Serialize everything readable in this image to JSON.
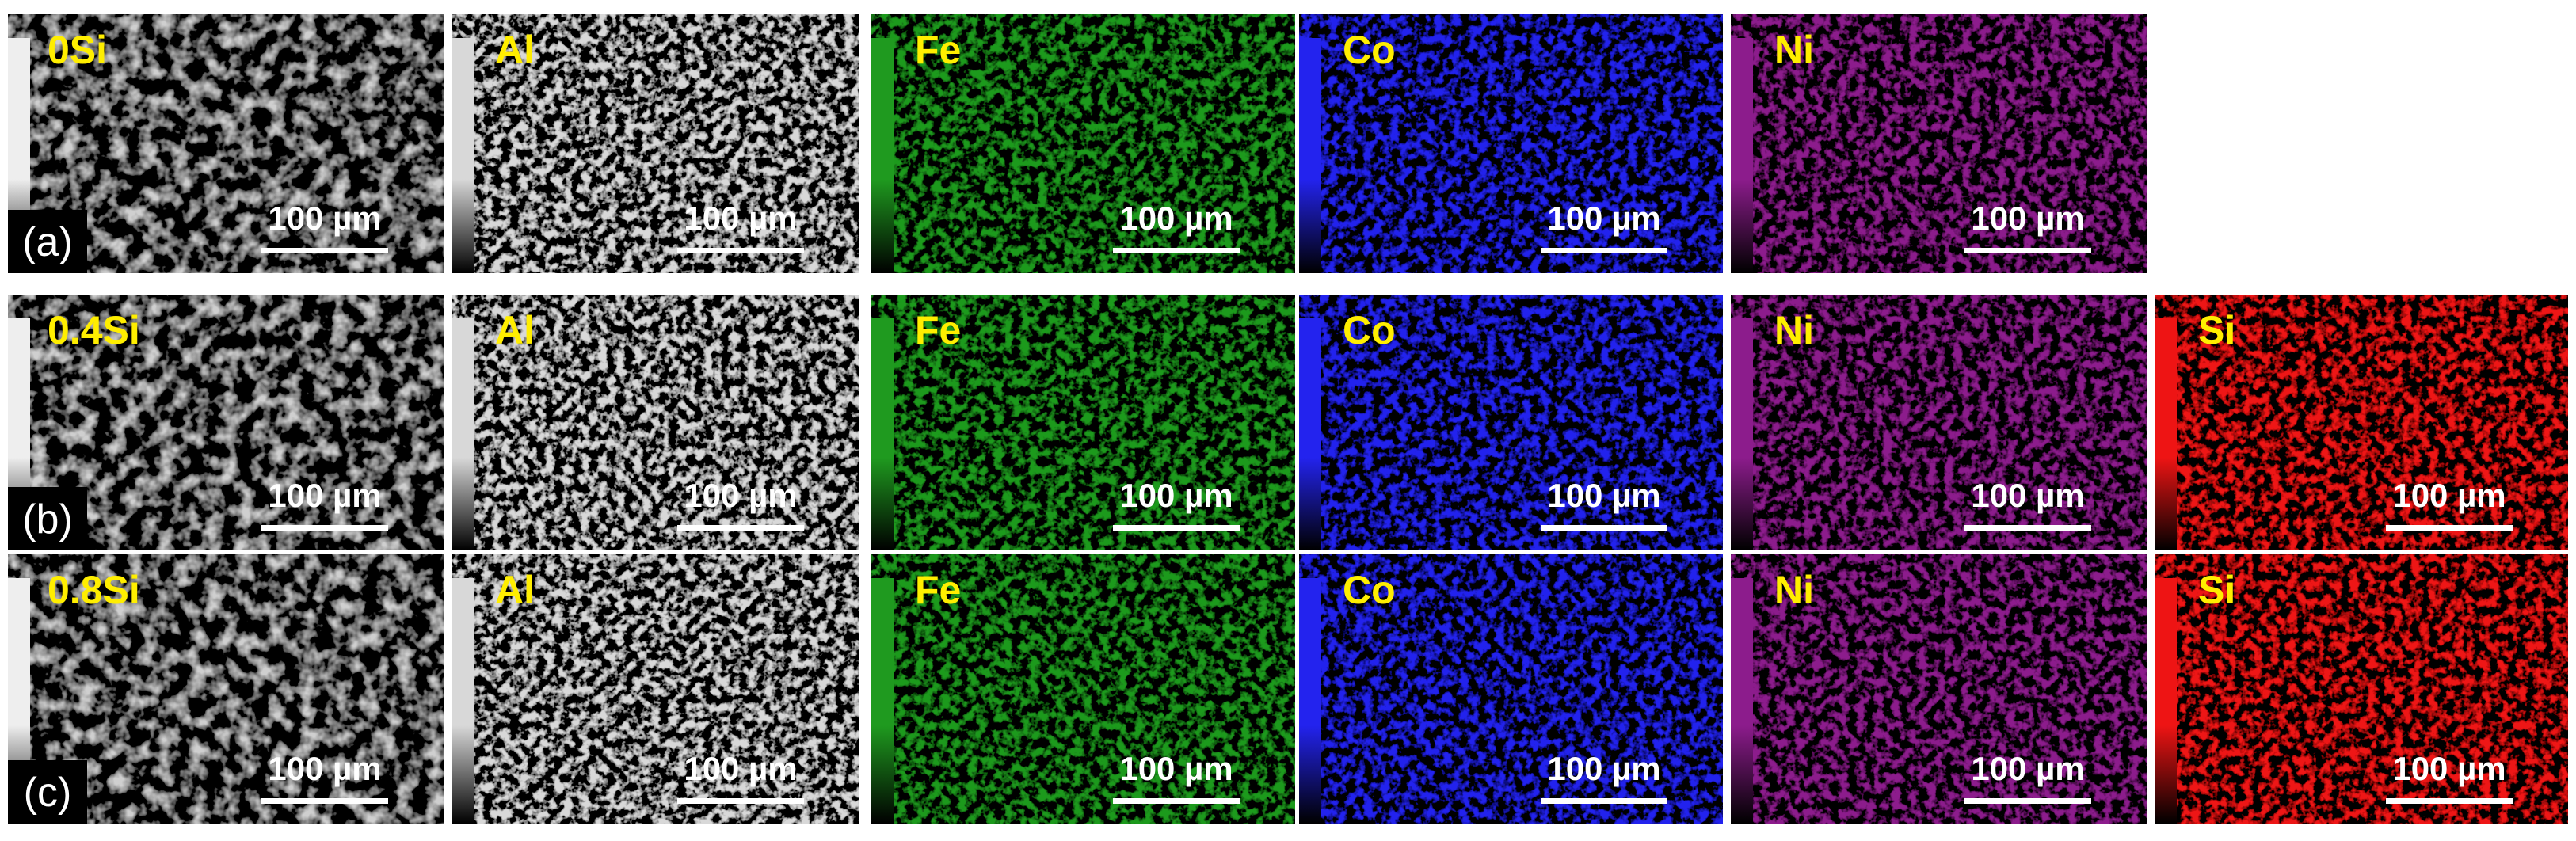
{
  "rows": [
    {
      "panel": "(a)",
      "sem": {
        "label": "0Si",
        "scale": "100 µm"
      },
      "maps": [
        {
          "element": "Al",
          "scale": "100 µm",
          "color": "#d8d8d8"
        },
        {
          "element": "Fe",
          "scale": "100 µm",
          "color": "#1f9a1f"
        },
        {
          "element": "Co",
          "scale": "100 µm",
          "color": "#2323ee"
        },
        {
          "element": "Ni",
          "scale": "100 µm",
          "color": "#8c1c8c"
        }
      ]
    },
    {
      "panel": "(b)",
      "sem": {
        "label": "0.4Si",
        "scale": "100 µm"
      },
      "maps": [
        {
          "element": "Al",
          "scale": "100 µm",
          "color": "#d8d8d8"
        },
        {
          "element": "Fe",
          "scale": "100 µm",
          "color": "#1f9a1f"
        },
        {
          "element": "Co",
          "scale": "100 µm",
          "color": "#2323ee"
        },
        {
          "element": "Ni",
          "scale": "100 µm",
          "color": "#8c1c8c"
        },
        {
          "element": "Si",
          "scale": "100 µm",
          "color": "#ee1414"
        }
      ]
    },
    {
      "panel": "(c)",
      "sem": {
        "label": "0.8Si",
        "scale": "100 µm"
      },
      "maps": [
        {
          "element": "Al",
          "scale": "100 µm",
          "color": "#d8d8d8"
        },
        {
          "element": "Fe",
          "scale": "100 µm",
          "color": "#1f9a1f"
        },
        {
          "element": "Co",
          "scale": "100 µm",
          "color": "#2323ee"
        },
        {
          "element": "Ni",
          "scale": "100 µm",
          "color": "#8c1c8c"
        },
        {
          "element": "Si",
          "scale": "100 µm",
          "color": "#ee1414"
        }
      ]
    }
  ]
}
